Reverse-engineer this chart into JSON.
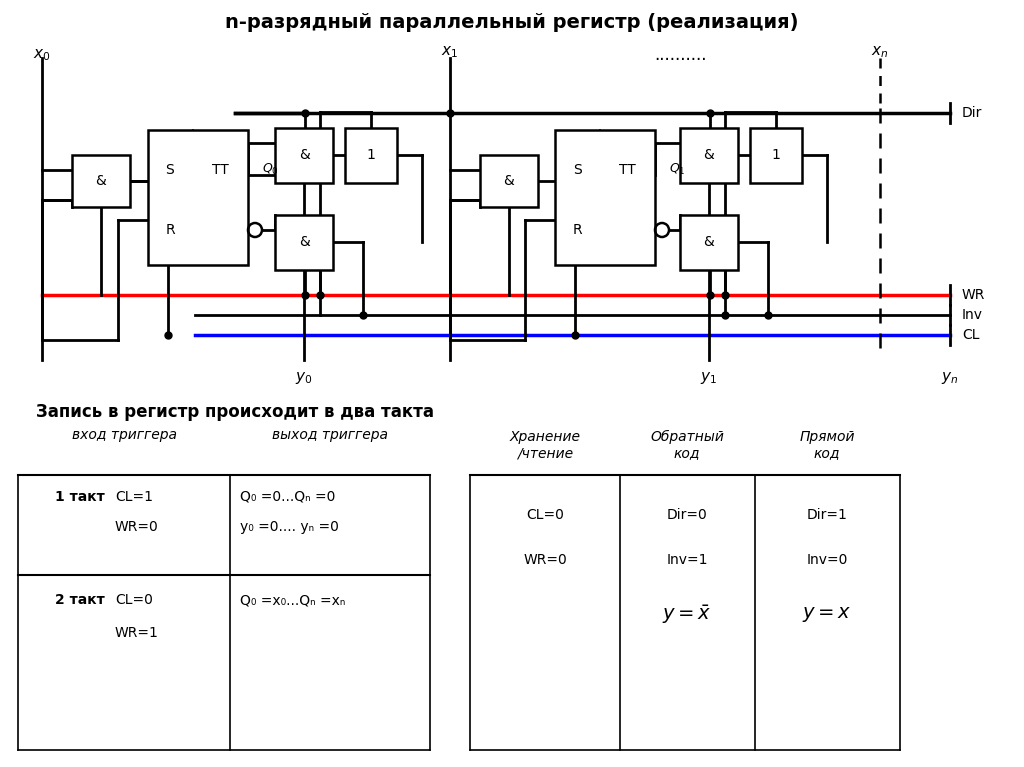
{
  "title": "n-разрядный параллельный регистр (реализация)",
  "title_fontsize": 13,
  "bg_color": "#ffffff",
  "table1_title": "Запись в регистр происходит в два такта",
  "col1_header": "вход триггера",
  "col2_header": "выход триггера",
  "row1_label": "1 такт",
  "row1_col1_line1": "CL=1",
  "row1_col1_line2": "WR=0",
  "row1_col2_line1": "Q₀ =0...Qₙ =0",
  "row1_col2_line2": "y₀ =0.... yₙ =0",
  "row2_label": "2 такт",
  "row2_col1_line1": "CL=0",
  "row2_col1_line2": "WR=1",
  "row2_col2_line1": "Q₀ =x₀...Qₙ =xₙ",
  "t2r1c1": "CL=0",
  "t2r1c2": "Dir=0",
  "t2r1c3": "Dir=1",
  "t2r2c1": "WR=0",
  "t2r2c2": "Inv=1",
  "t2r2c3": "Inv=0"
}
